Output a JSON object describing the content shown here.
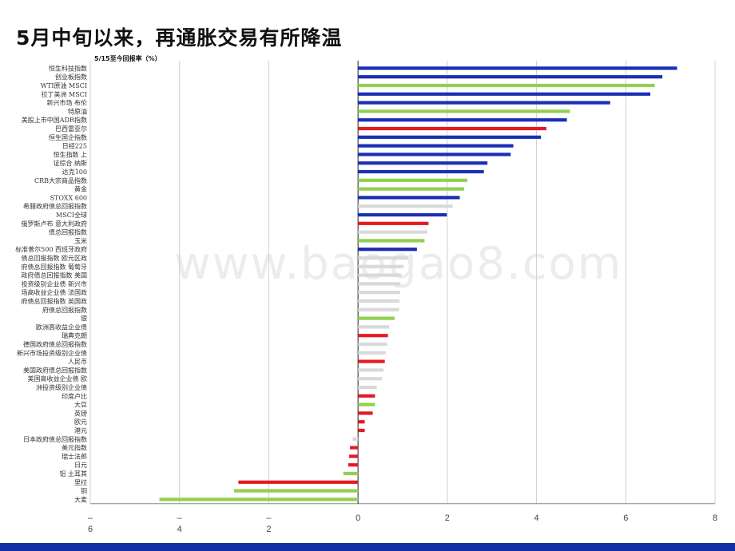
{
  "page": {
    "title": "5月中旬以来，再通胀交易有所降温",
    "watermark": "www.baogao8.com"
  },
  "colors": {
    "blue": "#1a2fb5",
    "green": "#92d050",
    "red": "#e31b23",
    "gray": "#d9d9d9",
    "footer": "#1230a6"
  },
  "chart_data": {
    "type": "bar",
    "orientation": "horizontal",
    "title": "",
    "subtitle": "5/15至今回报率（%）",
    "xlim": [
      -6,
      8
    ],
    "xticks": [
      {
        "value": -6,
        "label": "–\n6"
      },
      {
        "value": -4,
        "label": "–\n4"
      },
      {
        "value": -2,
        "label": "–\n2"
      },
      {
        "value": 0,
        "label": "0"
      },
      {
        "value": 2,
        "label": "2"
      },
      {
        "value": 4,
        "label": "4"
      },
      {
        "value": 6,
        "label": "6"
      },
      {
        "value": 8,
        "label": "8"
      }
    ],
    "grid": true,
    "legend": "none",
    "categories": [
      "恒生科技指数",
      "创业板指数",
      "WTI原油 MSCI",
      "拉丁美洲 MSCI",
      "新兴市场 布伦",
      "特原油",
      "美股上市中国ADR指数",
      "巴西雷亚尔",
      "恒生国企指数",
      "日经225",
      "恒生指数 上",
      "证综合 纳斯",
      "达克100",
      "CRB大宗商品指数",
      "黄金",
      "STOXX 600",
      "希腊政府债总回报指数",
      "MSCI全球",
      "俄罗斯卢布 意大利政府",
      "债总回报指数",
      "玉米",
      "标准普尔500 西班牙政府",
      "债总回报指数 欧元区政",
      "府债总回报指数 葡萄牙",
      "政府债总回报指数 美国",
      "投资级别企业债 新兴市",
      "场高收益企业债 法国政",
      "府债总回报指数 英国政",
      "府债总回报指数",
      "银",
      "欧洲高收益企业债",
      "瑞典克朗",
      "德国政府债总回报指数",
      "新兴市场投资级别企业债",
      "人民币",
      "美国政府债总回报指数",
      "美国高收益企业债 欧",
      "洲投资级别企业债",
      "印度卢比",
      "大豆",
      "英镑",
      "欧元",
      "港元",
      "日本政府债总回报指数",
      "美元指数",
      "瑞士法郎",
      "日元",
      "铝 土耳其",
      "里拉",
      "铜",
      "大麦"
    ],
    "values": [
      7.15,
      6.82,
      6.65,
      6.55,
      5.65,
      4.75,
      4.68,
      4.22,
      4.1,
      3.48,
      3.42,
      2.9,
      2.82,
      2.45,
      2.38,
      2.28,
      2.12,
      1.99,
      1.58,
      1.55,
      1.49,
      1.32,
      1.12,
      1.02,
      0.97,
      0.95,
      0.94,
      0.93,
      0.92,
      0.82,
      0.7,
      0.67,
      0.65,
      0.62,
      0.6,
      0.57,
      0.54,
      0.42,
      0.38,
      0.38,
      0.33,
      0.15,
      0.15,
      -0.12,
      -0.18,
      -0.2,
      -0.22,
      -0.33,
      -2.68,
      -2.78,
      -4.45
    ],
    "bar_colors": [
      "blue",
      "blue",
      "green",
      "blue",
      "blue",
      "green",
      "blue",
      "red",
      "blue",
      "blue",
      "blue",
      "blue",
      "blue",
      "green",
      "green",
      "blue",
      "gray",
      "blue",
      "red",
      "gray",
      "green",
      "blue",
      "gray",
      "gray",
      "gray",
      "gray",
      "gray",
      "gray",
      "gray",
      "green",
      "gray",
      "red",
      "gray",
      "gray",
      "red",
      "gray",
      "gray",
      "gray",
      "red",
      "green",
      "red",
      "red",
      "red",
      "gray",
      "red",
      "red",
      "red",
      "green",
      "red",
      "green",
      "green"
    ]
  }
}
